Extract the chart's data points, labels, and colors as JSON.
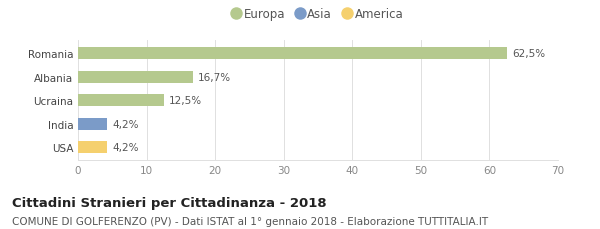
{
  "categories": [
    "Romania",
    "Albania",
    "Ucraina",
    "India",
    "USA"
  ],
  "values": [
    62.5,
    16.7,
    12.5,
    4.2,
    4.2
  ],
  "labels": [
    "62,5%",
    "16,7%",
    "12,5%",
    "4,2%",
    "4,2%"
  ],
  "bar_colors": [
    "#b5c98e",
    "#b5c98e",
    "#b5c98e",
    "#7b9bc8",
    "#f5d06e"
  ],
  "legend_items": [
    {
      "label": "Europa",
      "color": "#b5c98e"
    },
    {
      "label": "Asia",
      "color": "#7b9bc8"
    },
    {
      "label": "America",
      "color": "#f5d06e"
    }
  ],
  "xlim": [
    0,
    70
  ],
  "xticks": [
    0,
    10,
    20,
    30,
    40,
    50,
    60,
    70
  ],
  "title_bold": "Cittadini Stranieri per Cittadinanza - 2018",
  "subtitle": "COMUNE DI GOLFERENZO (PV) - Dati ISTAT al 1° gennaio 2018 - Elaborazione TUTTITALIA.IT",
  "background_color": "#ffffff",
  "grid_color": "#e0e0e0",
  "bar_height": 0.5,
  "title_fontsize": 9.5,
  "subtitle_fontsize": 7.5,
  "label_fontsize": 7.5,
  "tick_fontsize": 7.5,
  "legend_fontsize": 8.5
}
